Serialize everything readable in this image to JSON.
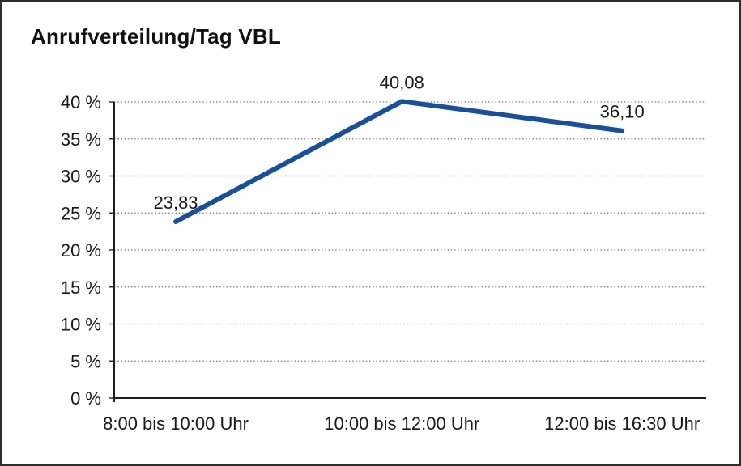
{
  "frame": {
    "title": "Anrufverteilung/Tag VBL"
  },
  "chart_data": {
    "type": "line",
    "title": "Anrufverteilung/Tag VBL",
    "categories": [
      "8:00 bis 10:00 Uhr",
      "10:00 bis 12:00 Uhr",
      "12:00 bis 16:30 Uhr"
    ],
    "series": [
      {
        "values": [
          23.83,
          40.08,
          36.1
        ]
      }
    ],
    "data_labels": [
      "23,83",
      "40,08",
      "36,10"
    ],
    "xlabel": "",
    "ylabel": "",
    "ylim": [
      0,
      40
    ],
    "ytick_step": 5,
    "ytick_labels": [
      "0 %",
      "5 %",
      "10 %",
      "15 %",
      "20 %",
      "25 %",
      "30 %",
      "35 %",
      "40 %"
    ],
    "grid": "horizontal-dotted",
    "legend": "none",
    "line_color": "#1A4F9A",
    "axis_color": "#1f1f1f",
    "grid_color": "#787878",
    "text_color": "#1a1a1a",
    "background": "#ffffff"
  }
}
